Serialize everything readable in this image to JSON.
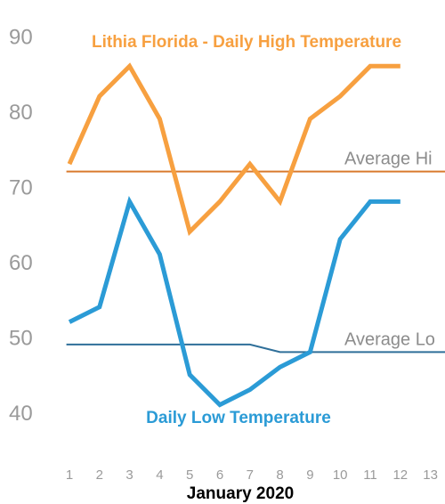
{
  "chart_data": {
    "type": "line",
    "title": "",
    "xlabel": "January 2020",
    "ylabel": "",
    "x": [
      1,
      2,
      3,
      4,
      5,
      6,
      7,
      8,
      9,
      10,
      11,
      12,
      13
    ],
    "x_ticks": [
      "1",
      "2",
      "3",
      "4",
      "5",
      "6",
      "7",
      "8",
      "9",
      "10",
      "11",
      "12",
      "13"
    ],
    "y_ticks": [
      "40",
      "50",
      "60",
      "70",
      "80",
      "90"
    ],
    "ylim": [
      38,
      92
    ],
    "grid": false,
    "series": [
      {
        "name": "Lithia Florida - Daily High Temperature",
        "color": "#f7a040",
        "x": [
          1,
          2,
          3,
          4,
          5,
          6,
          7,
          8,
          9,
          10,
          11,
          12
        ],
        "values": [
          73,
          82,
          86,
          79,
          64,
          68,
          73,
          68,
          79,
          82,
          86,
          86
        ]
      },
      {
        "name": "Daily Low Temperature",
        "color": "#2b9bd6",
        "x": [
          1,
          2,
          3,
          4,
          5,
          6,
          7,
          8,
          9,
          10,
          11,
          12
        ],
        "values": [
          52,
          54,
          68,
          61,
          45,
          41,
          43,
          46,
          48,
          63,
          68,
          68
        ]
      }
    ],
    "reference_lines": [
      {
        "label": "Average Hi",
        "color": "#d97a2e",
        "x": [
          0.9,
          13.5
        ],
        "values": [
          72,
          72
        ]
      },
      {
        "label": "Average Lo",
        "color": "#2f6f99",
        "x": [
          0.9,
          7,
          8,
          13.5
        ],
        "values": [
          49,
          49,
          48,
          48
        ]
      }
    ]
  }
}
